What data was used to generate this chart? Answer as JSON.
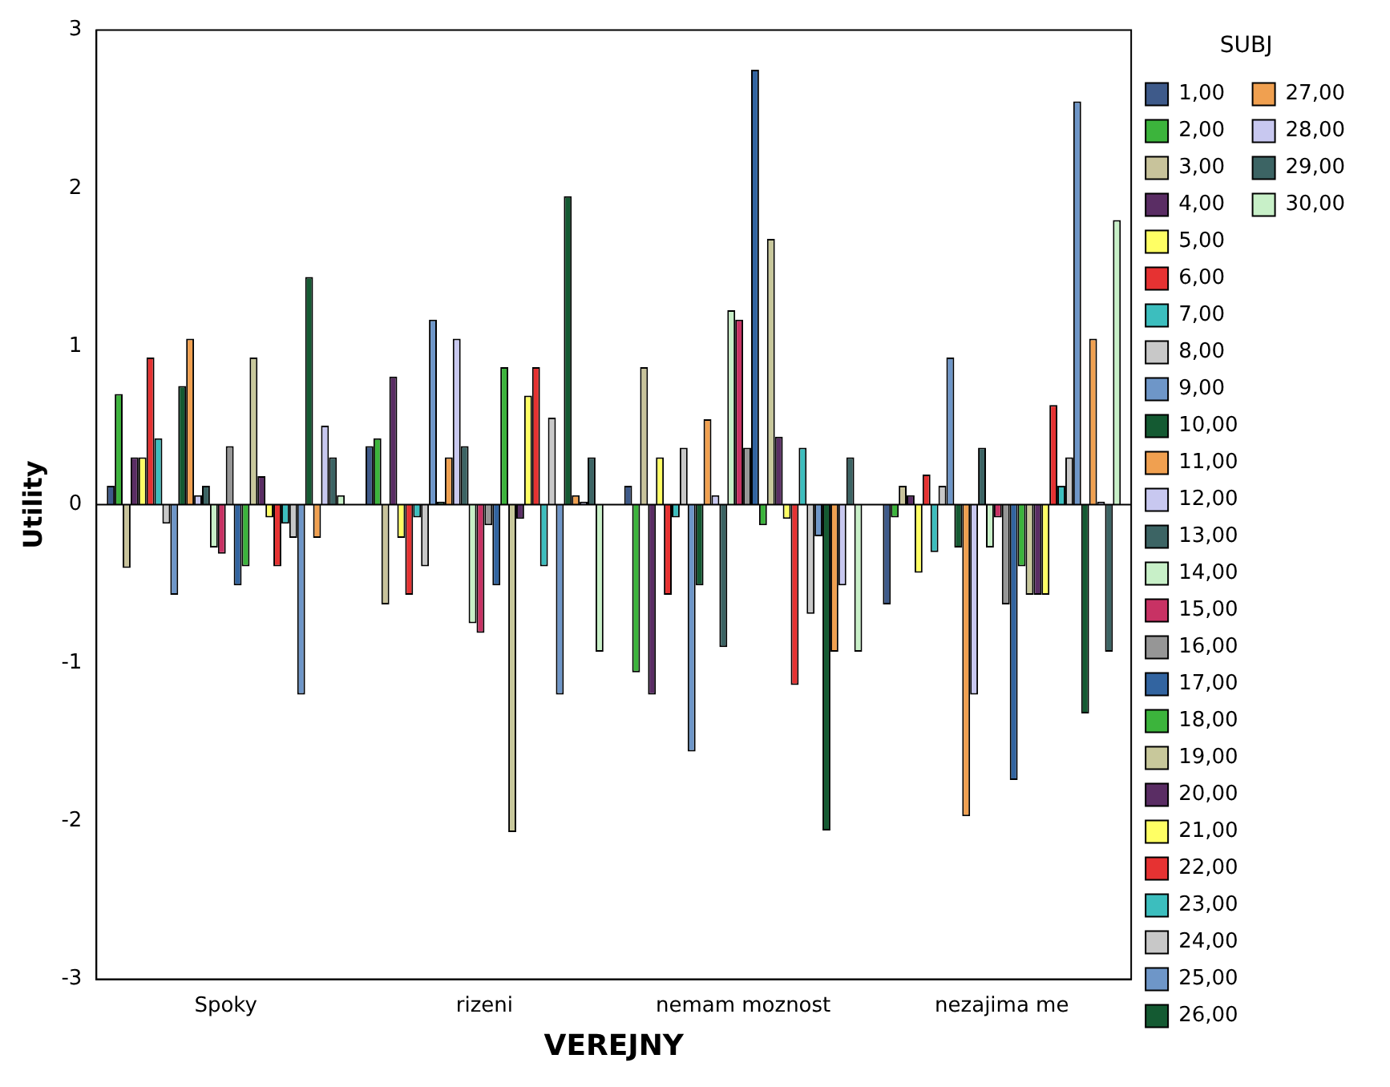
{
  "chart_data": {
    "type": "bar",
    "xlabel": "VEREJNY",
    "ylabel": "Utility",
    "legend_title": "SUBJ",
    "legend": "right",
    "categories": [
      "Spoky",
      "rizeni",
      "nemam moznost",
      "nezajima me"
    ],
    "ylim": [
      -3,
      3
    ],
    "yticks": [
      -3,
      -2,
      -1,
      0,
      1,
      2,
      3
    ],
    "grid": false,
    "ref_lines": [
      {
        "axis": "y",
        "value": 0,
        "color": "#000000"
      }
    ],
    "series": [
      {
        "name": "1,00",
        "color": "#3e5a8a",
        "values": [
          0.12,
          0.37,
          0.12,
          -0.63
        ]
      },
      {
        "name": "2,00",
        "color": "#3cb43c",
        "values": [
          0.7,
          0.42,
          -1.06,
          -0.08
        ]
      },
      {
        "name": "3,00",
        "color": "#c8c39b",
        "values": [
          -0.4,
          -0.63,
          0.87,
          0.12
        ]
      },
      {
        "name": "4,00",
        "color": "#5a2d64",
        "values": [
          0.3,
          0.81,
          -1.2,
          0.06
        ]
      },
      {
        "name": "5,00",
        "color": "#ffff64",
        "values": [
          0.3,
          -0.21,
          0.3,
          -0.43
        ]
      },
      {
        "name": "6,00",
        "color": "#e63232",
        "values": [
          0.93,
          -0.57,
          -0.57,
          0.19
        ]
      },
      {
        "name": "7,00",
        "color": "#3cbebe",
        "values": [
          0.42,
          -0.08,
          -0.08,
          -0.3
        ]
      },
      {
        "name": "8,00",
        "color": "#c8c8c8",
        "values": [
          -0.12,
          -0.39,
          0.36,
          0.12
        ]
      },
      {
        "name": "9,00",
        "color": "#6e96c8",
        "values": [
          -0.57,
          1.17,
          -1.56,
          0.93
        ]
      },
      {
        "name": "10,00",
        "color": "#145a32",
        "values": [
          0.75,
          0.02,
          -0.51,
          -0.27
        ]
      },
      {
        "name": "11,00",
        "color": "#f0a050",
        "values": [
          1.05,
          0.3,
          0.54,
          -1.97
        ]
      },
      {
        "name": "12,00",
        "color": "#c8c8f0",
        "values": [
          0.06,
          1.05,
          0.06,
          -1.2
        ]
      },
      {
        "name": "13,00",
        "color": "#3c6464",
        "values": [
          0.12,
          0.37,
          -0.9,
          0.36
        ]
      },
      {
        "name": "14,00",
        "color": "#c8f0c8",
        "values": [
          -0.27,
          -0.75,
          1.23,
          -0.27
        ]
      },
      {
        "name": "15,00",
        "color": "#c83264",
        "values": [
          -0.31,
          -0.81,
          1.17,
          -0.08
        ]
      },
      {
        "name": "16,00",
        "color": "#969696",
        "values": [
          0.37,
          -0.13,
          0.36,
          -0.63
        ]
      },
      {
        "name": "17,00",
        "color": "#3264a0",
        "values": [
          -0.51,
          -0.51,
          2.75,
          -1.74
        ]
      },
      {
        "name": "18,00",
        "color": "#3cb43c",
        "values": [
          -0.39,
          0.87,
          -0.13,
          -0.39
        ]
      },
      {
        "name": "19,00",
        "color": "#c8c89b",
        "values": [
          0.93,
          -2.07,
          1.68,
          -0.57
        ]
      },
      {
        "name": "20,00",
        "color": "#5a2d64",
        "values": [
          0.18,
          -0.09,
          0.43,
          -0.57
        ]
      },
      {
        "name": "21,00",
        "color": "#ffff64",
        "values": [
          -0.08,
          0.69,
          -0.09,
          -0.57
        ]
      },
      {
        "name": "22,00",
        "color": "#e63232",
        "values": [
          -0.39,
          0.87,
          -1.14,
          0.63
        ]
      },
      {
        "name": "23,00",
        "color": "#3cbebe",
        "values": [
          -0.12,
          -0.39,
          0.36,
          0.12
        ]
      },
      {
        "name": "24,00",
        "color": "#c8c8c8",
        "values": [
          -0.21,
          0.55,
          -0.69,
          0.3
        ]
      },
      {
        "name": "25,00",
        "color": "#6e96c8",
        "values": [
          -1.2,
          -1.2,
          -0.2,
          2.55
        ]
      },
      {
        "name": "26,00",
        "color": "#145a32",
        "values": [
          1.44,
          1.95,
          -2.06,
          -1.32
        ]
      },
      {
        "name": "27,00",
        "color": "#f0a050",
        "values": [
          -0.21,
          0.06,
          -0.93,
          1.05
        ]
      },
      {
        "name": "28,00",
        "color": "#c8c8f0",
        "values": [
          0.5,
          0.02,
          -0.51,
          0.02
        ]
      },
      {
        "name": "29,00",
        "color": "#3c6464",
        "values": [
          0.3,
          0.3,
          0.3,
          -0.93
        ]
      },
      {
        "name": "30,00",
        "color": "#c8f0c8",
        "values": [
          0.06,
          -0.93,
          -0.93,
          1.8
        ]
      }
    ]
  }
}
